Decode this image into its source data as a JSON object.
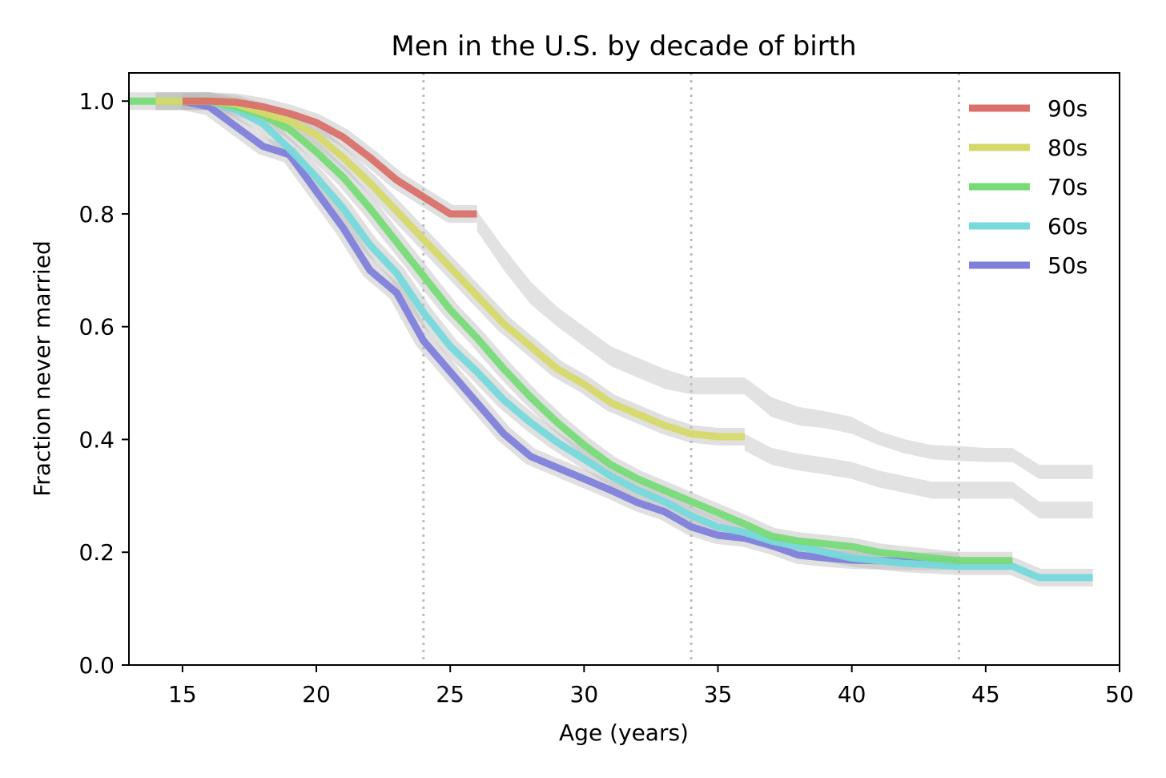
{
  "chart_data": {
    "type": "line",
    "title": "Men in the U.S. by decade of birth",
    "xlabel": "Age (years)",
    "ylabel": "Fraction never married",
    "xlim": [
      13,
      50
    ],
    "ylim": [
      0,
      1.05
    ],
    "xticks": [
      15,
      20,
      25,
      30,
      35,
      40,
      45,
      50
    ],
    "yticks": [
      0.0,
      0.2,
      0.4,
      0.6,
      0.8,
      1.0
    ],
    "xtick_labels": [
      "15",
      "20",
      "25",
      "30",
      "35",
      "40",
      "45",
      "50"
    ],
    "ytick_labels": [
      "0.0",
      "0.2",
      "0.4",
      "0.6",
      "0.8",
      "1.0"
    ],
    "vlines": [
      24,
      34,
      44
    ],
    "legend_position": "top-right",
    "series": [
      {
        "name": "90s",
        "color": "#d9716a",
        "x": [
          15,
          16,
          17,
          18,
          19,
          20,
          21,
          22,
          23,
          24,
          25,
          26
        ],
        "values": [
          1.0,
          1.0,
          0.998,
          0.99,
          0.978,
          0.962,
          0.936,
          0.9,
          0.86,
          0.83,
          0.8,
          0.8
        ]
      },
      {
        "name": "80s",
        "color": "#d6d96a",
        "x": [
          14,
          15,
          16,
          17,
          18,
          19,
          20,
          21,
          22,
          23,
          24,
          25,
          26,
          27,
          28,
          29,
          30,
          31,
          32,
          33,
          34,
          35,
          36
        ],
        "values": [
          1.0,
          1.0,
          1.0,
          0.995,
          0.98,
          0.965,
          0.94,
          0.9,
          0.855,
          0.805,
          0.755,
          0.705,
          0.655,
          0.605,
          0.565,
          0.525,
          0.498,
          0.465,
          0.445,
          0.425,
          0.41,
          0.405,
          0.405
        ]
      },
      {
        "name": "70s",
        "color": "#77db77",
        "x": [
          13,
          14,
          15,
          16,
          17,
          18,
          19,
          20,
          21,
          22,
          23,
          24,
          25,
          26,
          27,
          28,
          29,
          30,
          31,
          32,
          33,
          34,
          35,
          36,
          37,
          38,
          39,
          40,
          41,
          42,
          43,
          44,
          45,
          46
        ],
        "values": [
          1.0,
          1.0,
          1.0,
          1.0,
          0.99,
          0.975,
          0.95,
          0.91,
          0.865,
          0.81,
          0.75,
          0.69,
          0.63,
          0.58,
          0.525,
          0.475,
          0.43,
          0.39,
          0.355,
          0.33,
          0.31,
          0.29,
          0.27,
          0.25,
          0.228,
          0.22,
          0.215,
          0.21,
          0.2,
          0.195,
          0.19,
          0.185,
          0.185,
          0.185
        ]
      },
      {
        "name": "60s",
        "color": "#77d9db",
        "x": [
          14,
          15,
          16,
          17,
          18,
          19,
          20,
          21,
          22,
          23,
          24,
          25,
          26,
          27,
          28,
          29,
          30,
          31,
          32,
          33,
          34,
          35,
          36,
          37,
          38,
          39,
          40,
          41,
          42,
          43,
          44,
          45,
          46,
          47,
          48,
          49
        ],
        "values": [
          1.0,
          1.0,
          1.0,
          0.985,
          0.96,
          0.915,
          0.865,
          0.81,
          0.745,
          0.695,
          0.625,
          0.565,
          0.52,
          0.47,
          0.43,
          0.395,
          0.365,
          0.335,
          0.31,
          0.29,
          0.265,
          0.245,
          0.235,
          0.22,
          0.21,
          0.2,
          0.19,
          0.185,
          0.18,
          0.178,
          0.175,
          0.175,
          0.175,
          0.155,
          0.155,
          0.155
        ]
      },
      {
        "name": "50s",
        "color": "#7f7fdb",
        "x": [
          15,
          16,
          17,
          18,
          19,
          20,
          21,
          22,
          23,
          24,
          25,
          26,
          27,
          28,
          29,
          30,
          31,
          32,
          33,
          34,
          35,
          36,
          37,
          38,
          39,
          40,
          41,
          42,
          43,
          44
        ],
        "values": [
          1.0,
          0.99,
          0.955,
          0.92,
          0.905,
          0.84,
          0.775,
          0.7,
          0.66,
          0.575,
          0.52,
          0.465,
          0.41,
          0.37,
          0.35,
          0.33,
          0.31,
          0.288,
          0.272,
          0.245,
          0.23,
          0.225,
          0.212,
          0.195,
          0.19,
          0.186,
          0.185,
          0.184,
          0.184,
          0.184
        ]
      }
    ],
    "bands": [
      {
        "name": "upper-prediction-band",
        "x": [
          26,
          27,
          28,
          29,
          30,
          31,
          32,
          33,
          34,
          35,
          36,
          37,
          38,
          39,
          40,
          41,
          42,
          43,
          44,
          45,
          46,
          47,
          48,
          49
        ],
        "lower": [
          0.77,
          0.7,
          0.64,
          0.6,
          0.565,
          0.53,
          0.51,
          0.49,
          0.48,
          0.48,
          0.48,
          0.44,
          0.425,
          0.42,
          0.41,
          0.39,
          0.375,
          0.365,
          0.362,
          0.36,
          0.36,
          0.33,
          0.33,
          0.33
        ],
        "upper": [
          0.805,
          0.74,
          0.68,
          0.635,
          0.6,
          0.565,
          0.545,
          0.525,
          0.51,
          0.51,
          0.51,
          0.475,
          0.458,
          0.45,
          0.44,
          0.415,
          0.4,
          0.39,
          0.388,
          0.385,
          0.385,
          0.355,
          0.355,
          0.355
        ]
      },
      {
        "name": "lower-prediction-band",
        "x": [
          36,
          37,
          38,
          39,
          40,
          41,
          42,
          43,
          44,
          45,
          46,
          47,
          48,
          49
        ],
        "lower": [
          0.38,
          0.355,
          0.345,
          0.338,
          0.33,
          0.315,
          0.305,
          0.295,
          0.295,
          0.295,
          0.295,
          0.26,
          0.26,
          0.26
        ],
        "upper": [
          0.41,
          0.385,
          0.375,
          0.368,
          0.36,
          0.345,
          0.335,
          0.325,
          0.325,
          0.325,
          0.325,
          0.29,
          0.29,
          0.29
        ]
      }
    ]
  }
}
